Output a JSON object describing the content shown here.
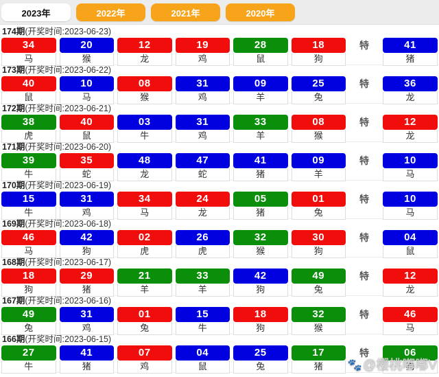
{
  "tabs": [
    {
      "label": "2023年",
      "active": true
    },
    {
      "label": "2022年",
      "active": false
    },
    {
      "label": "2021年",
      "active": false
    },
    {
      "label": "2020年",
      "active": false
    }
  ],
  "special_label": "特",
  "colors": {
    "red": "#f20d0d",
    "blue": "#0000e0",
    "green": "#0b8f0b",
    "orange": "#f7a41b"
  },
  "watermark": {
    "icon": "paw-icon",
    "text": "@樱桃嘟嘟V"
  },
  "rows": [
    {
      "period": "174期",
      "time": "(开奖时间:2023-06-23)",
      "balls": [
        {
          "n": "34",
          "c": "red",
          "z": "马"
        },
        {
          "n": "20",
          "c": "blue",
          "z": "猴"
        },
        {
          "n": "12",
          "c": "red",
          "z": "龙"
        },
        {
          "n": "19",
          "c": "red",
          "z": "鸡"
        },
        {
          "n": "28",
          "c": "green",
          "z": "鼠"
        },
        {
          "n": "18",
          "c": "red",
          "z": "狗"
        }
      ],
      "special": {
        "n": "41",
        "c": "blue",
        "z": "猪"
      }
    },
    {
      "period": "173期",
      "time": "(开奖时间:2023-06-22)",
      "balls": [
        {
          "n": "40",
          "c": "red",
          "z": "鼠"
        },
        {
          "n": "10",
          "c": "blue",
          "z": "马"
        },
        {
          "n": "08",
          "c": "red",
          "z": "猴"
        },
        {
          "n": "31",
          "c": "blue",
          "z": "鸡"
        },
        {
          "n": "09",
          "c": "blue",
          "z": "羊"
        },
        {
          "n": "25",
          "c": "blue",
          "z": "兔"
        }
      ],
      "special": {
        "n": "36",
        "c": "blue",
        "z": "龙"
      }
    },
    {
      "period": "172期",
      "time": "(开奖时间:2023-06-21)",
      "balls": [
        {
          "n": "38",
          "c": "green",
          "z": "虎"
        },
        {
          "n": "40",
          "c": "red",
          "z": "鼠"
        },
        {
          "n": "03",
          "c": "blue",
          "z": "牛"
        },
        {
          "n": "31",
          "c": "blue",
          "z": "鸡"
        },
        {
          "n": "33",
          "c": "green",
          "z": "羊"
        },
        {
          "n": "08",
          "c": "red",
          "z": "猴"
        }
      ],
      "special": {
        "n": "12",
        "c": "red",
        "z": "龙"
      }
    },
    {
      "period": "171期",
      "time": "(开奖时间:2023-06-20)",
      "balls": [
        {
          "n": "39",
          "c": "green",
          "z": "牛"
        },
        {
          "n": "35",
          "c": "red",
          "z": "蛇"
        },
        {
          "n": "48",
          "c": "blue",
          "z": "龙"
        },
        {
          "n": "47",
          "c": "blue",
          "z": "蛇"
        },
        {
          "n": "41",
          "c": "blue",
          "z": "猪"
        },
        {
          "n": "09",
          "c": "blue",
          "z": "羊"
        }
      ],
      "special": {
        "n": "10",
        "c": "blue",
        "z": "马"
      }
    },
    {
      "period": "170期",
      "time": "(开奖时间:2023-06-19)",
      "balls": [
        {
          "n": "15",
          "c": "blue",
          "z": "牛"
        },
        {
          "n": "31",
          "c": "blue",
          "z": "鸡"
        },
        {
          "n": "34",
          "c": "red",
          "z": "马"
        },
        {
          "n": "24",
          "c": "red",
          "z": "龙"
        },
        {
          "n": "05",
          "c": "green",
          "z": "猪"
        },
        {
          "n": "01",
          "c": "red",
          "z": "兔"
        }
      ],
      "special": {
        "n": "10",
        "c": "blue",
        "z": "马"
      }
    },
    {
      "period": "169期",
      "time": "(开奖时间:2023-06-18)",
      "balls": [
        {
          "n": "46",
          "c": "red",
          "z": "马"
        },
        {
          "n": "42",
          "c": "blue",
          "z": "狗"
        },
        {
          "n": "02",
          "c": "red",
          "z": "虎"
        },
        {
          "n": "26",
          "c": "blue",
          "z": "虎"
        },
        {
          "n": "32",
          "c": "green",
          "z": "猴"
        },
        {
          "n": "30",
          "c": "red",
          "z": "狗"
        }
      ],
      "special": {
        "n": "04",
        "c": "blue",
        "z": "鼠"
      }
    },
    {
      "period": "168期",
      "time": "(开奖时间:2023-06-17)",
      "balls": [
        {
          "n": "18",
          "c": "red",
          "z": "狗"
        },
        {
          "n": "29",
          "c": "red",
          "z": "猪"
        },
        {
          "n": "21",
          "c": "green",
          "z": "羊"
        },
        {
          "n": "33",
          "c": "green",
          "z": "羊"
        },
        {
          "n": "42",
          "c": "blue",
          "z": "狗"
        },
        {
          "n": "49",
          "c": "green",
          "z": "兔"
        }
      ],
      "special": {
        "n": "12",
        "c": "red",
        "z": "龙"
      }
    },
    {
      "period": "167期",
      "time": "(开奖时间:2023-06-16)",
      "balls": [
        {
          "n": "49",
          "c": "green",
          "z": "兔"
        },
        {
          "n": "31",
          "c": "blue",
          "z": "鸡"
        },
        {
          "n": "01",
          "c": "red",
          "z": "兔"
        },
        {
          "n": "15",
          "c": "blue",
          "z": "牛"
        },
        {
          "n": "18",
          "c": "red",
          "z": "狗"
        },
        {
          "n": "32",
          "c": "green",
          "z": "猴"
        }
      ],
      "special": {
        "n": "46",
        "c": "red",
        "z": "马"
      }
    },
    {
      "period": "166期",
      "time": "(开奖时间:2023-06-15)",
      "balls": [
        {
          "n": "27",
          "c": "green",
          "z": "牛"
        },
        {
          "n": "41",
          "c": "blue",
          "z": "猪"
        },
        {
          "n": "07",
          "c": "red",
          "z": "鸡"
        },
        {
          "n": "04",
          "c": "blue",
          "z": "鼠"
        },
        {
          "n": "25",
          "c": "blue",
          "z": "兔"
        },
        {
          "n": "17",
          "c": "green",
          "z": "猪"
        }
      ],
      "special": {
        "n": "06",
        "c": "green",
        "z": "狗"
      }
    }
  ]
}
